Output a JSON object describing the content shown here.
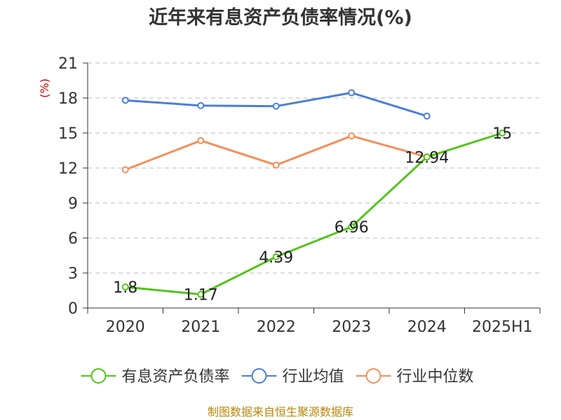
{
  "chart_data": {
    "type": "line",
    "title": "近年来有息资产负债率情况(%)",
    "ylabel": "(%)",
    "categories": [
      "2020",
      "2021",
      "2022",
      "2023",
      "2024",
      "2025H1"
    ],
    "ylim": [
      0,
      21
    ],
    "yticks": [
      0,
      3,
      6,
      9,
      12,
      15,
      18,
      21
    ],
    "grid": true,
    "legend_position": "bottom",
    "series": [
      {
        "name": "有息资产负债率",
        "color": "#52c41a",
        "values": [
          1.8,
          1.17,
          4.39,
          6.96,
          12.94,
          15
        ],
        "labels": [
          "1.8",
          "1.17",
          "4.39",
          "6.96",
          "12.94",
          "15"
        ]
      },
      {
        "name": "行业均值",
        "color": "#4a7fd6",
        "values": [
          17.8,
          17.35,
          17.3,
          18.45,
          16.45,
          null
        ]
      },
      {
        "name": "行业中位数",
        "color": "#f58f58",
        "values": [
          11.85,
          14.35,
          12.25,
          14.75,
          12.95,
          null
        ]
      }
    ],
    "source": "制图数据来自恒生聚源数据库"
  }
}
